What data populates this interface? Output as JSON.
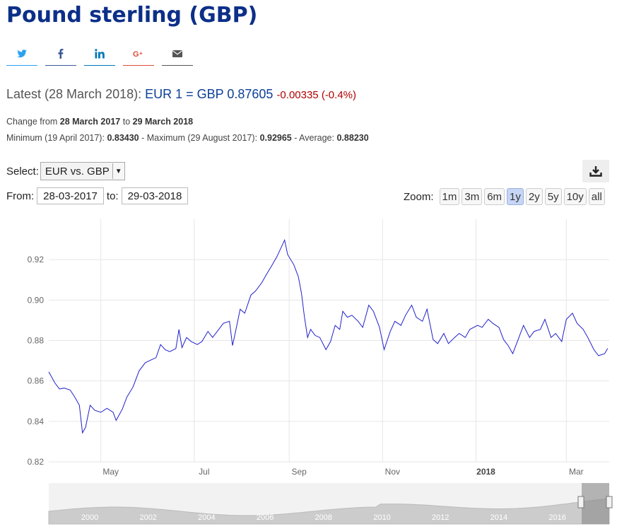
{
  "page": {
    "title": "Pound sterling (GBP)",
    "latest_prefix": "Latest (28 March 2018):",
    "latest_rate": "EUR 1 = GBP 0.87605",
    "latest_change": "-0.00335 (-0.4%)",
    "change_from_label": "Change from",
    "change_from_date": "28 March 2017",
    "change_to_label": "to",
    "change_to_date": "29 March 2018",
    "min_label": "Minimum (19 April 2017):",
    "min_value": "0.83430",
    "max_label": "- Maximum (29 August 2017):",
    "max_value": "0.92965",
    "avg_label": "- Average:",
    "avg_value": "0.88230"
  },
  "share": {
    "icons": [
      "twitter-icon",
      "facebook-icon",
      "linkedin-icon",
      "google-plus-icon",
      "email-icon"
    ]
  },
  "controls": {
    "select_label": "Select:",
    "select_value": "EUR vs. GBP",
    "from_label": "From:",
    "from_value": "28-03-2017",
    "to_label": "to:",
    "to_value": "29-03-2018",
    "zoom_label": "Zoom:",
    "zoom_options": [
      "1m",
      "3m",
      "6m",
      "1y",
      "2y",
      "5y",
      "10y",
      "all"
    ],
    "zoom_selected": "1y",
    "download_icon": "download-icon"
  },
  "colors": {
    "title": "#0c2f88",
    "rate": "#0c3f99",
    "change_negative": "#b00000",
    "series_line": "#2020cc",
    "navigator_fill": "#cccccc",
    "zoom_active": "#c7d6f5"
  },
  "chart_data": {
    "type": "line",
    "series_name": "",
    "x_range": [
      "2017-03-28",
      "2018-03-29"
    ],
    "ylim": [
      0.82,
      0.94
    ],
    "y_ticks": [
      "0.82",
      "0.84",
      "0.86",
      "0.88",
      "0.90",
      "0.92"
    ],
    "x_ticks": [
      "May",
      "Jul",
      "Sep",
      "Nov",
      "2018",
      "Mar"
    ],
    "x_ticks_bold": [
      "2018"
    ],
    "grid": true,
    "points": [
      [
        "2017-03-28",
        0.8645
      ],
      [
        "2017-04-01",
        0.859
      ],
      [
        "2017-04-04",
        0.856
      ],
      [
        "2017-04-07",
        0.8565
      ],
      [
        "2017-04-11",
        0.8555
      ],
      [
        "2017-04-14",
        0.852
      ],
      [
        "2017-04-17",
        0.848
      ],
      [
        "2017-04-19",
        0.8343
      ],
      [
        "2017-04-21",
        0.837
      ],
      [
        "2017-04-24",
        0.848
      ],
      [
        "2017-04-27",
        0.8455
      ],
      [
        "2017-05-01",
        0.8445
      ],
      [
        "2017-05-05",
        0.8465
      ],
      [
        "2017-05-09",
        0.8445
      ],
      [
        "2017-05-11",
        0.8405
      ],
      [
        "2017-05-15",
        0.846
      ],
      [
        "2017-05-18",
        0.852
      ],
      [
        "2017-05-22",
        0.857
      ],
      [
        "2017-05-26",
        0.865
      ],
      [
        "2017-05-30",
        0.869
      ],
      [
        "2017-06-03",
        0.8705
      ],
      [
        "2017-06-06",
        0.8715
      ],
      [
        "2017-06-09",
        0.878
      ],
      [
        "2017-06-12",
        0.8755
      ],
      [
        "2017-06-15",
        0.8745
      ],
      [
        "2017-06-19",
        0.876
      ],
      [
        "2017-06-21",
        0.8855
      ],
      [
        "2017-06-23",
        0.8765
      ],
      [
        "2017-06-26",
        0.8815
      ],
      [
        "2017-06-29",
        0.8795
      ],
      [
        "2017-07-03",
        0.878
      ],
      [
        "2017-07-06",
        0.8795
      ],
      [
        "2017-07-10",
        0.8845
      ],
      [
        "2017-07-13",
        0.8815
      ],
      [
        "2017-07-17",
        0.8855
      ],
      [
        "2017-07-20",
        0.8885
      ],
      [
        "2017-07-24",
        0.8895
      ],
      [
        "2017-07-26",
        0.8775
      ],
      [
        "2017-07-28",
        0.8845
      ],
      [
        "2017-07-31",
        0.8955
      ],
      [
        "2017-08-03",
        0.8935
      ],
      [
        "2017-08-07",
        0.9025
      ],
      [
        "2017-08-10",
        0.9045
      ],
      [
        "2017-08-14",
        0.9085
      ],
      [
        "2017-08-17",
        0.9125
      ],
      [
        "2017-08-21",
        0.9175
      ],
      [
        "2017-08-24",
        0.9215
      ],
      [
        "2017-08-29",
        0.9297
      ],
      [
        "2017-08-31",
        0.9225
      ],
      [
        "2017-09-04",
        0.9175
      ],
      [
        "2017-09-07",
        0.9115
      ],
      [
        "2017-09-09",
        0.9035
      ],
      [
        "2017-09-11",
        0.8915
      ],
      [
        "2017-09-13",
        0.8815
      ],
      [
        "2017-09-15",
        0.8855
      ],
      [
        "2017-09-18",
        0.8825
      ],
      [
        "2017-09-21",
        0.8815
      ],
      [
        "2017-09-25",
        0.8755
      ],
      [
        "2017-09-28",
        0.8795
      ],
      [
        "2017-10-01",
        0.8875
      ],
      [
        "2017-10-04",
        0.8855
      ],
      [
        "2017-10-06",
        0.8945
      ],
      [
        "2017-10-09",
        0.8915
      ],
      [
        "2017-10-12",
        0.8925
      ],
      [
        "2017-10-16",
        0.8895
      ],
      [
        "2017-10-19",
        0.8865
      ],
      [
        "2017-10-23",
        0.8975
      ],
      [
        "2017-10-26",
        0.8945
      ],
      [
        "2017-10-30",
        0.8865
      ],
      [
        "2017-11-02",
        0.8755
      ],
      [
        "2017-11-06",
        0.8845
      ],
      [
        "2017-11-09",
        0.8895
      ],
      [
        "2017-11-13",
        0.8875
      ],
      [
        "2017-11-16",
        0.8925
      ],
      [
        "2017-11-20",
        0.8975
      ],
      [
        "2017-11-23",
        0.8915
      ],
      [
        "2017-11-27",
        0.8895
      ],
      [
        "2017-11-30",
        0.8955
      ],
      [
        "2017-12-04",
        0.8805
      ],
      [
        "2017-12-07",
        0.8785
      ],
      [
        "2017-12-11",
        0.8835
      ],
      [
        "2017-12-14",
        0.8785
      ],
      [
        "2017-12-18",
        0.8815
      ],
      [
        "2017-12-21",
        0.8835
      ],
      [
        "2017-12-25",
        0.8815
      ],
      [
        "2017-12-28",
        0.8855
      ],
      [
        "2018-01-02",
        0.8875
      ],
      [
        "2018-01-05",
        0.8865
      ],
      [
        "2018-01-09",
        0.8905
      ],
      [
        "2018-01-12",
        0.8885
      ],
      [
        "2018-01-16",
        0.8865
      ],
      [
        "2018-01-19",
        0.8805
      ],
      [
        "2018-01-22",
        0.8775
      ],
      [
        "2018-01-25",
        0.8735
      ],
      [
        "2018-01-29",
        0.8815
      ],
      [
        "2018-02-01",
        0.8875
      ],
      [
        "2018-02-05",
        0.8815
      ],
      [
        "2018-02-08",
        0.8845
      ],
      [
        "2018-02-12",
        0.8855
      ],
      [
        "2018-02-15",
        0.8905
      ],
      [
        "2018-02-19",
        0.8815
      ],
      [
        "2018-02-22",
        0.8835
      ],
      [
        "2018-02-26",
        0.8795
      ],
      [
        "2018-03-01",
        0.8905
      ],
      [
        "2018-03-05",
        0.8935
      ],
      [
        "2018-03-08",
        0.8885
      ],
      [
        "2018-03-12",
        0.8855
      ],
      [
        "2018-03-15",
        0.8815
      ],
      [
        "2018-03-19",
        0.8755
      ],
      [
        "2018-03-22",
        0.8725
      ],
      [
        "2018-03-26",
        0.8735
      ],
      [
        "2018-03-28",
        0.8761
      ]
    ],
    "navigator": {
      "x_ticks": [
        "2000",
        "2002",
        "2004",
        "2006",
        "2008",
        "2010",
        "2012",
        "2014",
        "2016"
      ]
    }
  }
}
